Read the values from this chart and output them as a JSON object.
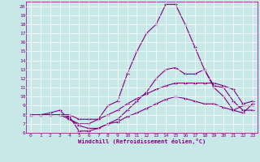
{
  "xlabel": "Windchill (Refroidissement éolien,°C)",
  "background_color": "#c8e8e8",
  "line_color": "#800080",
  "xlim": [
    -0.5,
    23.5
  ],
  "ylim": [
    6,
    20.5
  ],
  "xticks": [
    0,
    1,
    2,
    3,
    4,
    5,
    6,
    7,
    8,
    9,
    10,
    11,
    12,
    13,
    14,
    15,
    16,
    17,
    18,
    19,
    20,
    21,
    22,
    23
  ],
  "yticks": [
    6,
    7,
    8,
    9,
    10,
    11,
    12,
    13,
    14,
    15,
    16,
    17,
    18,
    19,
    20
  ],
  "series": [
    [
      8.0,
      8.0,
      8.0,
      8.0,
      7.5,
      7.0,
      7.0,
      7.5,
      9.0,
      9.5,
      12.5,
      15.0,
      17.0,
      18.0,
      20.2,
      20.2,
      18.0,
      15.5,
      13.0,
      11.0,
      10.0,
      8.5,
      9.0,
      9.0
    ],
    [
      8.0,
      8.0,
      8.2,
      8.5,
      7.5,
      6.8,
      6.5,
      6.5,
      7.0,
      7.5,
      8.5,
      9.5,
      10.5,
      12.0,
      13.0,
      13.2,
      12.5,
      12.5,
      13.0,
      11.2,
      11.0,
      9.5,
      8.5,
      8.5
    ],
    [
      8.0,
      8.0,
      8.0,
      8.0,
      8.0,
      7.5,
      7.5,
      7.5,
      8.0,
      8.5,
      9.2,
      9.8,
      10.3,
      10.8,
      11.2,
      11.5,
      11.5,
      11.5,
      11.5,
      11.5,
      11.2,
      10.8,
      9.2,
      9.5
    ],
    [
      8.0,
      8.0,
      8.0,
      8.0,
      7.8,
      6.2,
      6.2,
      6.5,
      7.0,
      7.2,
      7.8,
      8.2,
      8.7,
      9.2,
      9.7,
      10.0,
      9.8,
      9.5,
      9.2,
      9.2,
      8.8,
      8.5,
      8.2,
      9.2
    ]
  ]
}
